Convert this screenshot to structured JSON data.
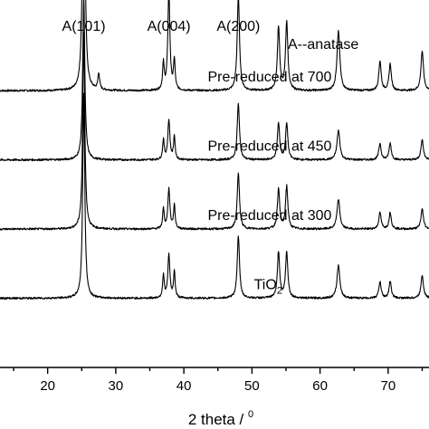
{
  "chart_data": {
    "type": "line",
    "title": "",
    "xlabel": "2 theta / ",
    "xlabel_superscript": "0",
    "ylabel": "",
    "xlim": [
      13,
      76
    ],
    "x_ticks": [
      20,
      30,
      40,
      50,
      60,
      70
    ],
    "grid": false,
    "annotation": "A--anatase",
    "peak_labels": [
      {
        "text": "A(101)",
        "x": 25.3
      },
      {
        "text": "A(004)",
        "x": 37.8
      },
      {
        "text": "A(200)",
        "x": 48.0
      }
    ],
    "peaks": [
      {
        "x": 25.3,
        "width": 0.18
      },
      {
        "x": 27.5,
        "width": 0.15
      },
      {
        "x": 37.0,
        "width": 0.14
      },
      {
        "x": 37.8,
        "width": 0.18
      },
      {
        "x": 38.6,
        "width": 0.14
      },
      {
        "x": 48.0,
        "width": 0.2
      },
      {
        "x": 53.9,
        "width": 0.2
      },
      {
        "x": 55.1,
        "width": 0.2
      },
      {
        "x": 62.7,
        "width": 0.25
      },
      {
        "x": 68.8,
        "width": 0.2
      },
      {
        "x": 70.3,
        "width": 0.2
      },
      {
        "x": 75.0,
        "width": 0.22
      }
    ],
    "series": [
      {
        "label": "Pre-reduced at 700",
        "label_x": 43.5,
        "baseline": 0.84,
        "heights": [
          1.0,
          0.05,
          0.08,
          0.3,
          0.09,
          0.29,
          0.19,
          0.21,
          0.18,
          0.09,
          0.08,
          0.12
        ]
      },
      {
        "label": "Pre-reduced at 450",
        "label_x": 43.5,
        "baseline": 0.63,
        "heights": [
          0.5,
          0.0,
          0.06,
          0.12,
          0.07,
          0.17,
          0.11,
          0.11,
          0.09,
          0.05,
          0.05,
          0.06
        ]
      },
      {
        "label": "Pre-reduced at 300",
        "label_x": 43.5,
        "baseline": 0.42,
        "heights": [
          0.6,
          0.0,
          0.06,
          0.12,
          0.07,
          0.17,
          0.12,
          0.13,
          0.09,
          0.05,
          0.05,
          0.06
        ]
      },
      {
        "label": "TiO",
        "label_subscript": "2",
        "label_x": 50.3,
        "baseline": 0.21,
        "heights": [
          0.62,
          0.0,
          0.07,
          0.13,
          0.08,
          0.19,
          0.14,
          0.14,
          0.1,
          0.05,
          0.05,
          0.07
        ]
      }
    ]
  }
}
